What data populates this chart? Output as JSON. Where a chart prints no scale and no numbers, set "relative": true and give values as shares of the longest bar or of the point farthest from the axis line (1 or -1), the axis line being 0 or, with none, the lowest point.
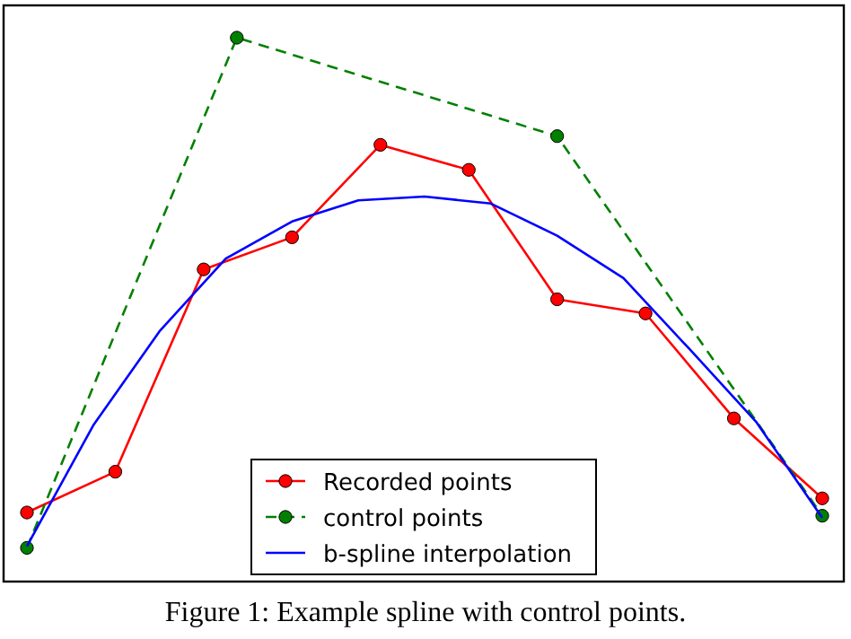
{
  "chart_data": {
    "type": "line",
    "relative": true,
    "legend": "bottom",
    "annotations": [
      "Figure 1: Example spline with control points."
    ],
    "categories": [
      null,
      null,
      null,
      null,
      null,
      null,
      null,
      null,
      null,
      null,
      null,
      null,
      null,
      null,
      null,
      null,
      null,
      null,
      null,
      null,
      null,
      null,
      null,
      null,
      null,
      null,
      null,
      null,
      null,
      null,
      null,
      null,
      null,
      null,
      null,
      null,
      null,
      null,
      null,
      null,
      null,
      null,
      null,
      null,
      null,
      null,
      null,
      null,
      null,
      null,
      null,
      null,
      null,
      null,
      null,
      null,
      null,
      null,
      null,
      null,
      null,
      null,
      null,
      null,
      null,
      null,
      null,
      null,
      null,
      null,
      null,
      null,
      null
    ],
    "series": [
      {
        "name": "Recorded points",
        "color": "#ff0000",
        "marker": "circle",
        "line_style": "solid",
        "values": [
          0.127,
          null,
          null,
          null,
          null,
          null,
          null,
          null,
          0.202,
          null,
          null,
          null,
          null,
          null,
          null,
          null,
          0.574,
          null,
          null,
          null,
          null,
          null,
          null,
          null,
          0.633,
          null,
          null,
          null,
          null,
          null,
          null,
          null,
          0.803,
          null,
          null,
          null,
          null,
          null,
          null,
          null,
          0.757,
          null,
          null,
          null,
          null,
          null,
          null,
          null,
          0.519,
          null,
          null,
          null,
          null,
          null,
          null,
          null,
          0.493,
          null,
          null,
          null,
          null,
          null,
          null,
          null,
          0.3,
          null,
          null,
          null,
          null,
          null,
          null,
          null,
          0.153
        ]
      },
      {
        "name": "control points",
        "color": "#008000",
        "marker": "circle",
        "line_style": "dashed",
        "values": [
          0.062,
          null,
          null,
          null,
          null,
          null,
          null,
          null,
          null,
          null,
          null,
          null,
          null,
          null,
          null,
          null,
          null,
          null,
          null,
          1.0,
          null,
          null,
          null,
          null,
          null,
          null,
          null,
          null,
          null,
          null,
          null,
          null,
          null,
          null,
          null,
          null,
          null,
          null,
          null,
          null,
          null,
          null,
          null,
          null,
          null,
          null,
          null,
          null,
          0.819,
          null,
          null,
          null,
          null,
          null,
          null,
          null,
          null,
          null,
          null,
          null,
          null,
          null,
          null,
          null,
          null,
          null,
          null,
          null,
          null,
          null,
          null,
          null,
          0.121
        ]
      },
      {
        "name": "b-spline interpolation",
        "color": "#0000ff",
        "marker": "none",
        "line_style": "solid",
        "values": [
          0.065,
          null,
          null,
          null,
          null,
          null,
          0.287,
          null,
          null,
          null,
          null,
          null,
          0.46,
          null,
          null,
          null,
          null,
          null,
          0.594,
          null,
          null,
          null,
          null,
          null,
          0.662,
          null,
          null,
          null,
          null,
          null,
          0.701,
          null,
          null,
          null,
          null,
          null,
          0.708,
          null,
          null,
          null,
          null,
          null,
          0.695,
          null,
          null,
          null,
          null,
          null,
          0.636,
          null,
          null,
          null,
          null,
          null,
          0.558,
          null,
          null,
          null,
          null,
          null,
          0.427,
          null,
          null,
          null,
          null,
          null,
          0.294,
          null,
          null,
          null,
          null,
          null,
          0.117
        ]
      }
    ]
  }
}
